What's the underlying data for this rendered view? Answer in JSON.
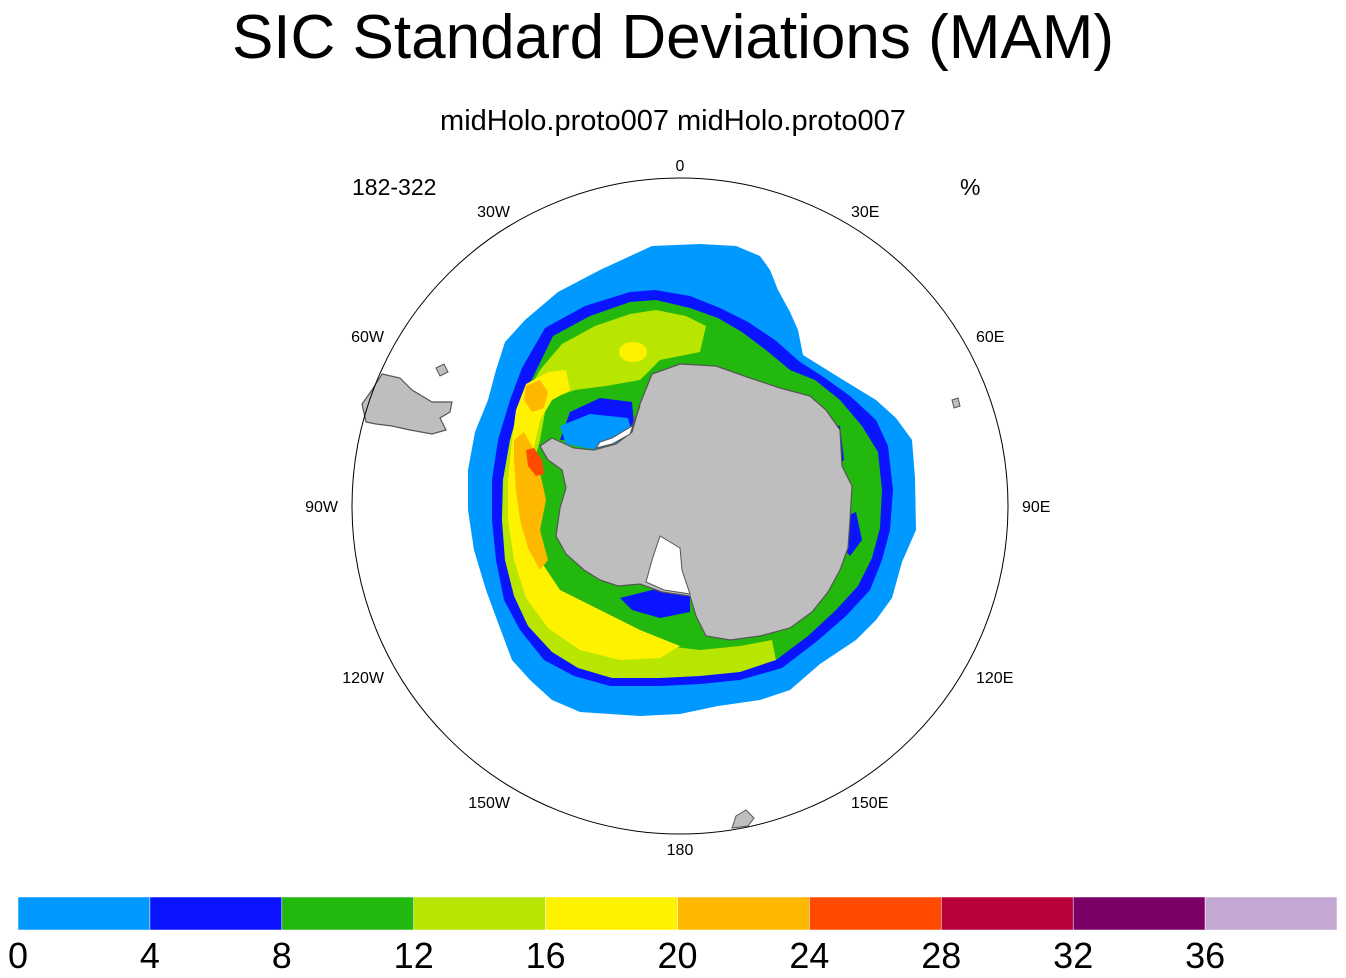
{
  "title": "SIC Standard Deviations (MAM)",
  "subtitle": "midHolo.proto007  midHolo.proto007",
  "left_label": "182-322",
  "right_label": "%",
  "map": {
    "projection": "south polar stereographic",
    "lon_labels": [
      "0",
      "30E",
      "60E",
      "90E",
      "120E",
      "150E",
      "180",
      "150W",
      "120W",
      "90W",
      "60W",
      "30W"
    ],
    "land_color": "#BEBEBE",
    "ice_shelf_color": "#FFFFFF"
  },
  "colorbar": {
    "levels": [
      "0",
      "4",
      "8",
      "12",
      "16",
      "20",
      "24",
      "28",
      "32",
      "36"
    ],
    "colors": [
      "#0099FF",
      "#0A14FF",
      "#22B80E",
      "#B8E600",
      "#FFF200",
      "#FFB800",
      "#FF4A00",
      "#B8003A",
      "#7A0066",
      "#C4A8D4"
    ]
  }
}
